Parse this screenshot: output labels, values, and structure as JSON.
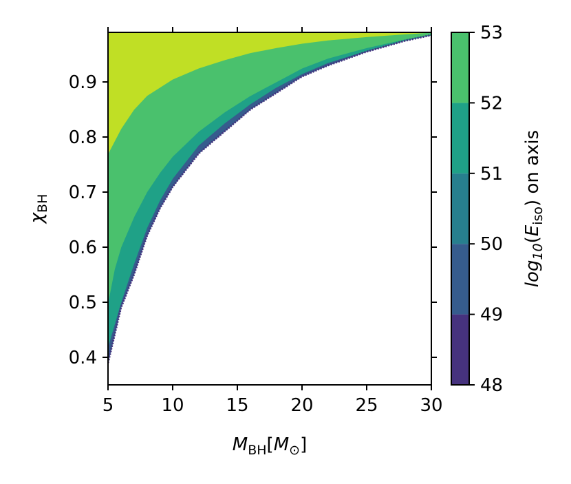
{
  "chart_data": {
    "type": "contourf",
    "title": "",
    "xlabel": {
      "symbol": "M",
      "subscript": "BH",
      "unit_open": "[",
      "unit_symbol": "M",
      "unit_subscript": "⊙",
      "unit_close": "]"
    },
    "ylabel": {
      "symbol": "χ",
      "subscript": "BH"
    },
    "colorbar_label": {
      "pre": "log",
      "sub10": "10",
      "open": "(",
      "symbol": "E",
      "subscript": "iso",
      "close": ")",
      "suffix": " on axis"
    },
    "xlim": [
      5,
      30
    ],
    "ylim": [
      0.35,
      0.99
    ],
    "xticks": [
      5,
      10,
      15,
      20,
      25,
      30
    ],
    "xtick_labels": [
      "5",
      "10",
      "15",
      "20",
      "25",
      "30"
    ],
    "yticks": [
      0.4,
      0.5,
      0.6,
      0.7,
      0.8,
      0.9
    ],
    "ytick_labels": [
      "0.4",
      "0.5",
      "0.6",
      "0.7",
      "0.8",
      "0.9"
    ],
    "colorbar": {
      "levels": [
        48,
        49,
        50,
        51,
        52,
        53
      ],
      "tick_labels": [
        "48",
        "49",
        "50",
        "51",
        "52",
        "53"
      ],
      "colors": [
        "#46327e",
        "#365c8d",
        "#277f8e",
        "#1fa187",
        "#4ac16d",
        "#c0df25"
      ]
    },
    "contour_boundaries": [
      {
        "name": "lower-edge",
        "x": [
          5.0,
          5.5,
          6.0,
          7.0,
          8.0,
          9.0,
          10.0,
          12.0,
          14.0,
          16.0,
          18.0,
          20.0,
          22.0,
          25.0,
          28.0,
          30.0
        ],
        "y": [
          0.39,
          0.44,
          0.49,
          0.55,
          0.62,
          0.67,
          0.71,
          0.77,
          0.81,
          0.85,
          0.88,
          0.91,
          0.93,
          0.955,
          0.975,
          0.985
        ]
      },
      {
        "name": "level-50",
        "x": [
          5.0,
          6.0,
          7.0,
          8.0,
          9.0,
          10.0,
          12.0,
          14.0,
          16.0,
          18.0,
          20.0,
          22.0,
          25.0,
          28.0,
          30.0
        ],
        "y": [
          0.42,
          0.5,
          0.57,
          0.635,
          0.685,
          0.725,
          0.785,
          0.825,
          0.86,
          0.89,
          0.915,
          0.935,
          0.957,
          0.976,
          0.986
        ]
      },
      {
        "name": "level-51",
        "x": [
          5.0,
          5.5,
          6.0,
          7.0,
          8.0,
          9.0,
          10.0,
          12.0,
          14.0,
          16.0,
          18.0,
          20.0,
          22.0,
          25.0,
          28.0,
          30.0
        ],
        "y": [
          0.5,
          0.56,
          0.6,
          0.655,
          0.7,
          0.735,
          0.765,
          0.81,
          0.845,
          0.875,
          0.9,
          0.925,
          0.943,
          0.962,
          0.978,
          0.987
        ]
      },
      {
        "name": "level-52",
        "x": [
          5.0,
          6.0,
          7.0,
          8.0,
          10.0,
          12.0,
          14.0,
          16.0,
          18.0,
          20.0,
          22.0,
          25.0,
          28.0,
          30.0
        ],
        "y": [
          0.77,
          0.815,
          0.85,
          0.875,
          0.905,
          0.925,
          0.94,
          0.953,
          0.962,
          0.97,
          0.976,
          0.982,
          0.987,
          0.99
        ]
      }
    ],
    "grid": false,
    "legend": "colorbar-right"
  }
}
